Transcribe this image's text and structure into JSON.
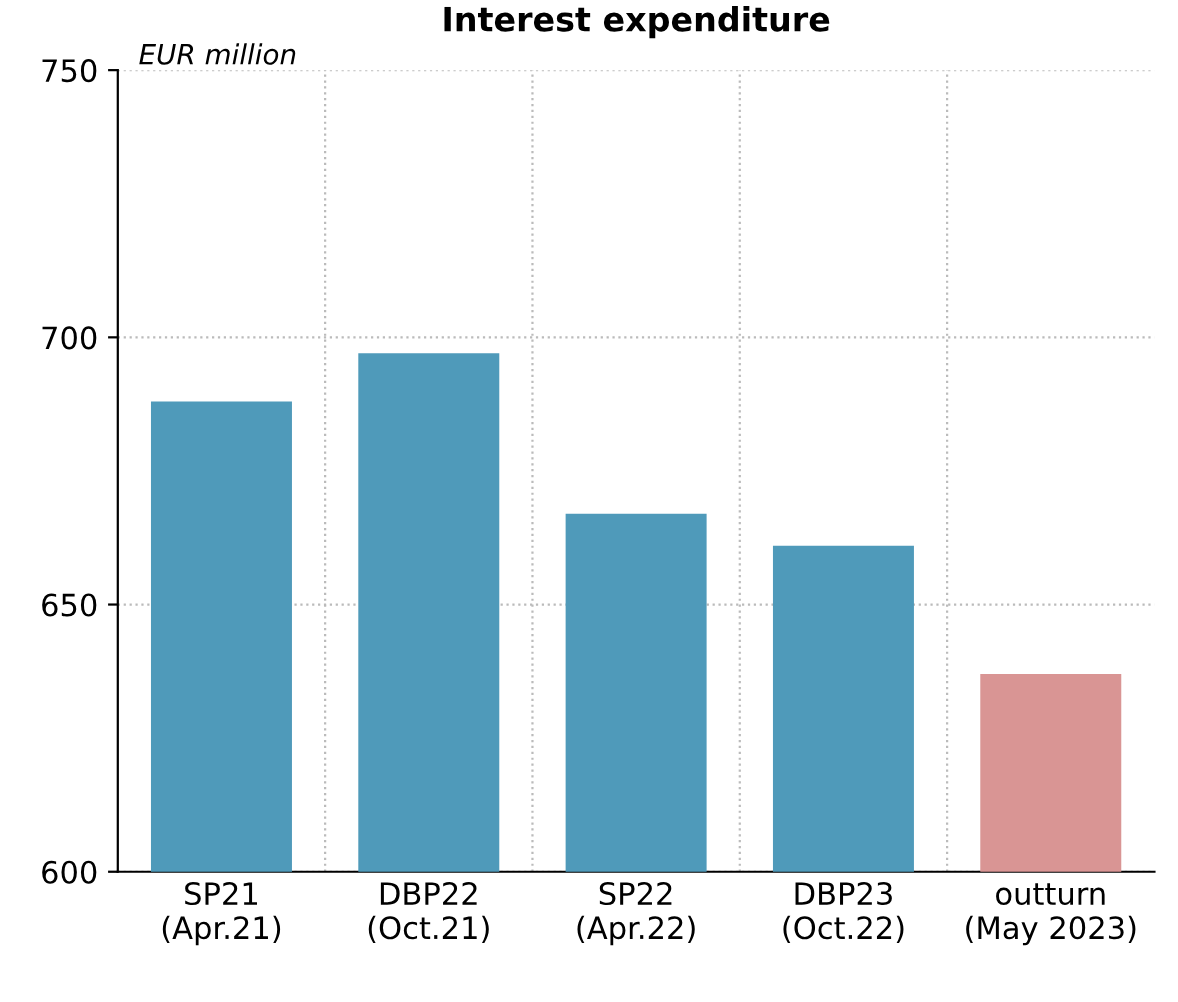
{
  "chart_data": {
    "type": "bar",
    "title": "Interest expenditure",
    "ylabel": "EUR million",
    "categories": [
      "SP21\n(Apr.21)",
      "DBP22\n(Oct.21)",
      "SP22\n(Apr.22)",
      "DBP23\n(Oct.22)",
      "outturn\n(May 2023)"
    ],
    "values": [
      688,
      697,
      667,
      661,
      637
    ],
    "colors": [
      "#4f9aba",
      "#4f9aba",
      "#4f9aba",
      "#4f9aba",
      "#d99594"
    ],
    "ylim": [
      600,
      750
    ],
    "yticks": [
      600,
      650,
      700,
      750
    ],
    "grid": true
  }
}
